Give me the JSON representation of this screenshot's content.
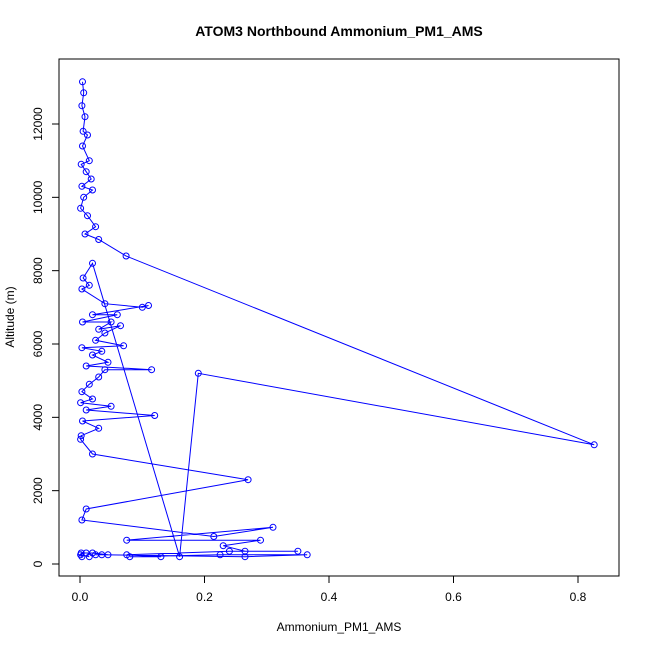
{
  "chart_data": {
    "type": "line",
    "title": "ATOM3 Northbound Ammonium_PM1_AMS",
    "xlabel": "Ammonium_PM1_AMS",
    "ylabel": "Altitude (m)",
    "xlim": [
      0,
      0.85
    ],
    "ylim": [
      0,
      13200
    ],
    "x_ticks": [
      0,
      0.2,
      0.4,
      0.6,
      0.8
    ],
    "x_tick_labels": [
      "0.0",
      "0.2",
      "0.4",
      "0.6",
      "0.8"
    ],
    "y_ticks": [
      0,
      2000,
      4000,
      6000,
      8000,
      10000,
      12000
    ],
    "y_tick_labels": [
      "0",
      "2000",
      "4000",
      "6000",
      "8000",
      "10000",
      "12000"
    ],
    "grid": false,
    "color": "#0000ff",
    "series": [
      {
        "marker": "open-circle",
        "points": [
          [
            0.004,
            13150
          ],
          [
            0.006,
            12850
          ],
          [
            0.003,
            12500
          ],
          [
            0.008,
            12200
          ],
          [
            0.005,
            11800
          ],
          [
            0.012,
            11700
          ],
          [
            0.004,
            11400
          ],
          [
            0.015,
            11000
          ],
          [
            0.002,
            10900
          ],
          [
            0.01,
            10700
          ],
          [
            0.018,
            10500
          ],
          [
            0.003,
            10300
          ],
          [
            0.02,
            10200
          ],
          [
            0.006,
            10000
          ],
          [
            0.001,
            9700
          ],
          [
            0.012,
            9500
          ],
          [
            0.025,
            9200
          ],
          [
            0.008,
            9000
          ],
          [
            0.03,
            8850
          ],
          [
            0.074,
            8400
          ],
          [
            0.826,
            3250
          ],
          [
            0.19,
            5200
          ],
          [
            0.16,
            200
          ],
          [
            0.02,
            8200
          ],
          [
            0.005,
            7800
          ],
          [
            0.015,
            7600
          ],
          [
            0.003,
            7500
          ],
          [
            0.04,
            7100
          ],
          [
            0.1,
            7000
          ],
          [
            0.11,
            7050
          ],
          [
            0.02,
            6800
          ],
          [
            0.06,
            6800
          ],
          [
            0.004,
            6600
          ],
          [
            0.05,
            6600
          ],
          [
            0.03,
            6400
          ],
          [
            0.065,
            6500
          ],
          [
            0.04,
            6300
          ],
          [
            0.025,
            6100
          ],
          [
            0.07,
            5950
          ],
          [
            0.003,
            5900
          ],
          [
            0.035,
            5800
          ],
          [
            0.02,
            5700
          ],
          [
            0.045,
            5500
          ],
          [
            0.01,
            5400
          ],
          [
            0.115,
            5300
          ],
          [
            0.04,
            5300
          ],
          [
            0.03,
            5100
          ],
          [
            0.015,
            4900
          ],
          [
            0.003,
            4700
          ],
          [
            0.02,
            4500
          ],
          [
            0.001,
            4400
          ],
          [
            0.05,
            4300
          ],
          [
            0.01,
            4200
          ],
          [
            0.12,
            4050
          ],
          [
            0.004,
            3900
          ],
          [
            0.03,
            3700
          ],
          [
            0.002,
            3500
          ],
          [
            0.001,
            3400
          ],
          [
            0.02,
            3000
          ],
          [
            0.27,
            2300
          ],
          [
            0.01,
            1500
          ],
          [
            0.003,
            1200
          ],
          [
            0.215,
            750
          ],
          [
            0.31,
            1000
          ],
          [
            0.075,
            650
          ],
          [
            0.29,
            650
          ],
          [
            0.23,
            500
          ],
          [
            0.265,
            350
          ],
          [
            0.35,
            350
          ],
          [
            0.24,
            350
          ],
          [
            0.075,
            250
          ],
          [
            0.13,
            200
          ],
          [
            0.08,
            200
          ],
          [
            0.225,
            250
          ],
          [
            0.365,
            250
          ],
          [
            0.265,
            200
          ],
          [
            0.035,
            250
          ],
          [
            0.025,
            250
          ],
          [
            0.045,
            250
          ],
          [
            0.02,
            300
          ],
          [
            0.01,
            300
          ],
          [
            0.002,
            300
          ],
          [
            0.003,
            200
          ],
          [
            0.001,
            250
          ],
          [
            0.015,
            200
          ]
        ]
      }
    ]
  }
}
